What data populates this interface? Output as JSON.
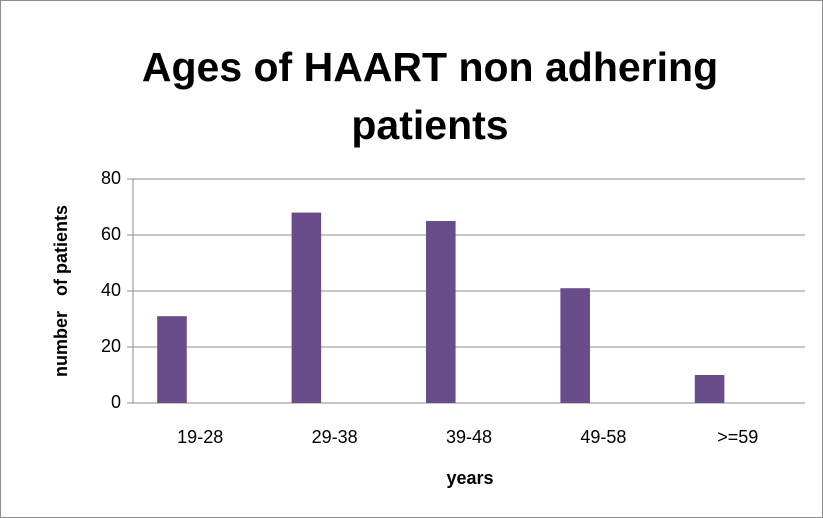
{
  "chart_data": {
    "type": "bar",
    "title": "Ages of HAART non adhering patients",
    "x_label": "years",
    "y_label": "number   of patients",
    "categories": [
      "19-28",
      "29-38",
      "39-48",
      "49-58",
      ">=59"
    ],
    "values": [
      31,
      68,
      65,
      41,
      10
    ],
    "color": "#684d8a",
    "ylim": [
      0,
      80
    ],
    "yticks": [
      0,
      20,
      40,
      60,
      80
    ],
    "grid": true
  }
}
